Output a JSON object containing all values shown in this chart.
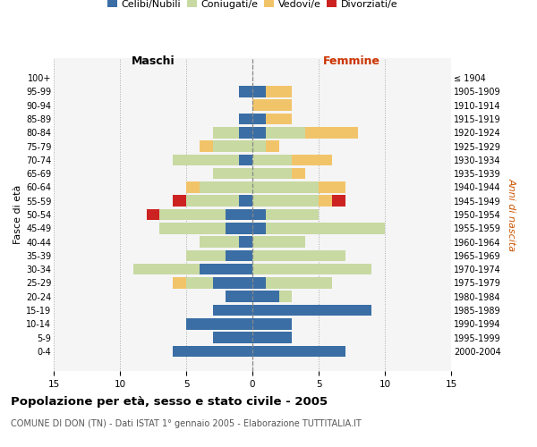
{
  "age_groups": [
    "100+",
    "95-99",
    "90-94",
    "85-89",
    "80-84",
    "75-79",
    "70-74",
    "65-69",
    "60-64",
    "55-59",
    "50-54",
    "45-49",
    "40-44",
    "35-39",
    "30-34",
    "25-29",
    "20-24",
    "15-19",
    "10-14",
    "5-9",
    "0-4"
  ],
  "birth_years": [
    "≤ 1904",
    "1905-1909",
    "1910-1914",
    "1915-1919",
    "1920-1924",
    "1925-1929",
    "1930-1934",
    "1935-1939",
    "1940-1944",
    "1945-1949",
    "1950-1954",
    "1955-1959",
    "1960-1964",
    "1965-1969",
    "1970-1974",
    "1975-1979",
    "1980-1984",
    "1985-1989",
    "1990-1994",
    "1995-1999",
    "2000-2004"
  ],
  "maschi": {
    "celibi": [
      0,
      1,
      0,
      1,
      1,
      0,
      1,
      0,
      0,
      1,
      2,
      2,
      1,
      2,
      4,
      3,
      2,
      3,
      5,
      3,
      6
    ],
    "coniugati": [
      0,
      0,
      0,
      0,
      2,
      3,
      5,
      3,
      4,
      4,
      5,
      5,
      3,
      3,
      5,
      2,
      0,
      0,
      0,
      0,
      0
    ],
    "vedovi": [
      0,
      0,
      0,
      0,
      0,
      1,
      0,
      0,
      1,
      0,
      0,
      0,
      0,
      0,
      0,
      1,
      0,
      0,
      0,
      0,
      0
    ],
    "divorziati": [
      0,
      0,
      0,
      0,
      0,
      0,
      0,
      0,
      0,
      1,
      1,
      0,
      0,
      0,
      0,
      0,
      0,
      0,
      0,
      0,
      0
    ]
  },
  "femmine": {
    "nubili": [
      0,
      1,
      0,
      1,
      1,
      0,
      0,
      0,
      0,
      0,
      1,
      1,
      0,
      0,
      0,
      1,
      2,
      9,
      3,
      3,
      7
    ],
    "coniugate": [
      0,
      0,
      0,
      0,
      3,
      1,
      3,
      3,
      5,
      5,
      4,
      9,
      4,
      7,
      9,
      5,
      1,
      0,
      0,
      0,
      0
    ],
    "vedove": [
      0,
      2,
      3,
      2,
      4,
      1,
      3,
      1,
      2,
      1,
      0,
      0,
      0,
      0,
      0,
      0,
      0,
      0,
      0,
      0,
      0
    ],
    "divorziate": [
      0,
      0,
      0,
      0,
      0,
      0,
      0,
      0,
      0,
      1,
      0,
      0,
      0,
      0,
      0,
      0,
      0,
      0,
      0,
      0,
      0
    ]
  },
  "colors": {
    "celibi_nubili": "#3a6ea5",
    "coniugati_e": "#c8d9a2",
    "vedovi_e": "#f2c46a",
    "divorziati_e": "#cc2222"
  },
  "xlim": 15,
  "title": "Popolazione per età, sesso e stato civile - 2005",
  "subtitle": "COMUNE DI DON (TN) - Dati ISTAT 1° gennaio 2005 - Elaborazione TUTTITALIA.IT",
  "ylabel_left": "Fasce di età",
  "ylabel_right": "Anni di nascita",
  "xlabel_left": "Maschi",
  "xlabel_right": "Femmine",
  "femmine_label_color": "#cc3300",
  "bg_color": "#f5f5f5"
}
